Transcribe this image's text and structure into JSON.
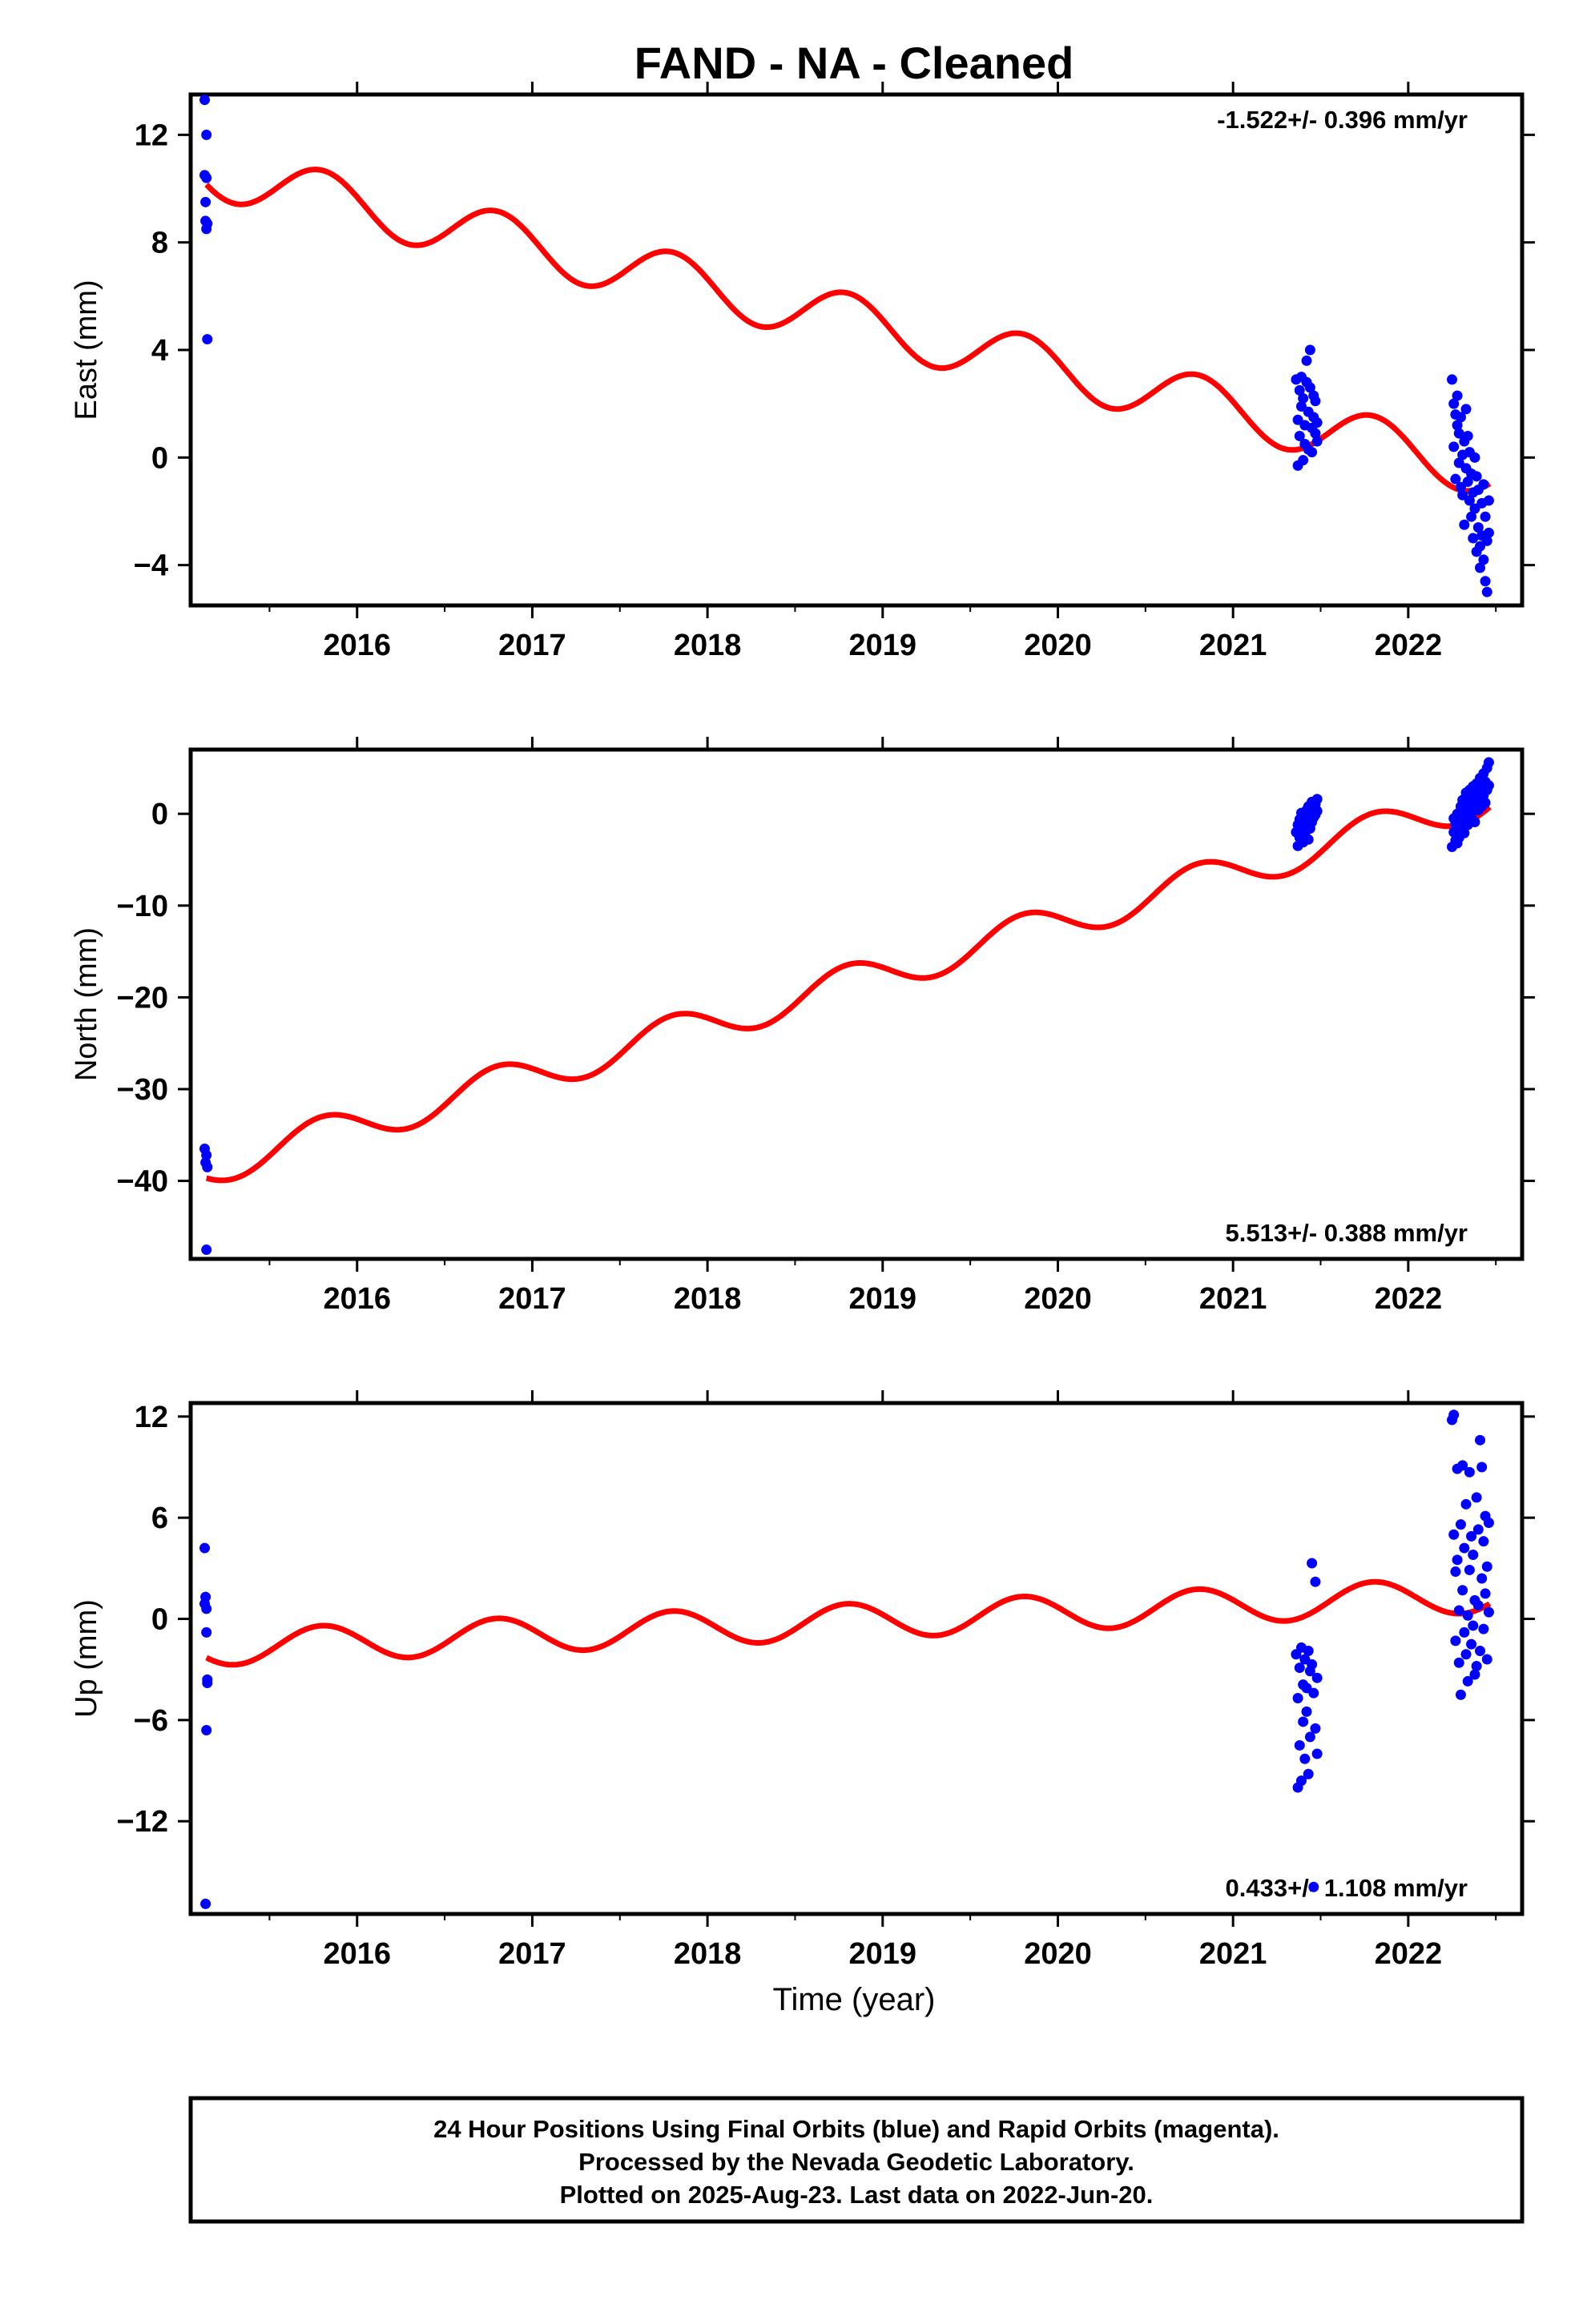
{
  "title": "FAND  - NA - Cleaned",
  "x_axis_label": "Time (year)",
  "footer": {
    "line1": "24 Hour Positions Using Final Orbits (blue) and Rapid Orbits (magenta).",
    "line2": "Processed by the Nevada Geodetic Laboratory.",
    "line3": "Plotted on 2025-Aug-23. Last data on 2022-Jun-20."
  },
  "colors": {
    "data_points": "#0000ff",
    "model_fit": "#ff0000",
    "frame": "#000000"
  },
  "chart_data": [
    {
      "type": "scatter",
      "panel": "east",
      "ylabel": "East (mm)",
      "rate_text": "-1.522+/- 0.396 mm/yr",
      "rate_position": "top-right",
      "xlim": [
        2015.05,
        2022.65
      ],
      "ylim": [
        -5.5,
        13.5
      ],
      "xticks": [
        2016,
        2017,
        2018,
        2019,
        2020,
        2021,
        2022
      ],
      "yticks": [
        12,
        8,
        4,
        0,
        -4
      ],
      "model": {
        "intercept_2015": 10.9,
        "rate_mm_yr": -1.522,
        "annual_amp": 1.0,
        "annual_phase": 0.45
      },
      "points": {
        "x": [
          2015.13,
          2015.13,
          2015.135,
          2015.135,
          2015.14,
          2015.14,
          2015.14,
          2015.145,
          2015.145,
          2021.36,
          2021.37,
          2021.37,
          2021.38,
          2021.38,
          2021.39,
          2021.39,
          2021.4,
          2021.4,
          2021.41,
          2021.41,
          2021.42,
          2021.42,
          2021.43,
          2021.43,
          2021.44,
          2021.44,
          2021.45,
          2021.45,
          2021.46,
          2021.46,
          2021.47,
          2021.47,
          2021.48,
          2021.48,
          2022.25,
          2022.26,
          2022.26,
          2022.27,
          2022.27,
          2022.28,
          2022.28,
          2022.29,
          2022.29,
          2022.3,
          2022.3,
          2022.31,
          2022.31,
          2022.32,
          2022.32,
          2022.33,
          2022.33,
          2022.34,
          2022.34,
          2022.35,
          2022.35,
          2022.36,
          2022.36,
          2022.37,
          2022.37,
          2022.38,
          2022.38,
          2022.39,
          2022.39,
          2022.4,
          2022.4,
          2022.41,
          2022.41,
          2022.42,
          2022.42,
          2022.43,
          2022.43,
          2022.44,
          2022.44,
          2022.45,
          2022.45,
          2022.46,
          2022.46
        ],
        "y": [
          13.3,
          10.5,
          9.5,
          8.8,
          12.0,
          10.4,
          8.5,
          4.4,
          8.7,
          2.9,
          1.4,
          -0.3,
          2.5,
          0.8,
          3.0,
          1.9,
          -0.1,
          2.2,
          1.2,
          0.5,
          3.6,
          2.8,
          1.7,
          0.3,
          4.0,
          2.6,
          1.1,
          0.2,
          2.3,
          1.5,
          0.9,
          2.1,
          1.3,
          0.6,
          2.9,
          2.0,
          0.4,
          1.6,
          -0.8,
          2.3,
          1.2,
          -0.2,
          0.9,
          -1.1,
          1.5,
          0.1,
          -1.4,
          0.6,
          -2.5,
          -0.4,
          1.8,
          -0.9,
          0.8,
          -1.6,
          0.2,
          -0.6,
          -2.2,
          -1.3,
          -3.0,
          0.0,
          -1.9,
          -3.5,
          -0.7,
          -2.6,
          -1.2,
          -3.3,
          -4.1,
          -1.7,
          -2.9,
          -3.8,
          -1.0,
          -4.6,
          -2.2,
          -3.1,
          -5.0,
          -1.6,
          -2.8
        ]
      }
    },
    {
      "type": "scatter",
      "panel": "north",
      "ylabel": "North (mm)",
      "rate_text": "5.513+/- 0.388 mm/yr",
      "rate_position": "bottom-right",
      "xlim": [
        2015.05,
        2022.65
      ],
      "ylim": [
        -48.5,
        7
      ],
      "xticks": [
        2016,
        2017,
        2018,
        2019,
        2020,
        2021,
        2022
      ],
      "yticks": [
        0,
        -10,
        -20,
        -30,
        -40
      ],
      "model": {
        "intercept_2015": -39.4,
        "rate_mm_yr": 5.513,
        "annual_amp": 2.0,
        "annual_phase": 0.45
      },
      "points": {
        "x": [
          2015.13,
          2015.135,
          2015.14,
          2015.145,
          2015.14,
          2021.36,
          2021.37,
          2021.37,
          2021.38,
          2021.38,
          2021.39,
          2021.39,
          2021.4,
          2021.4,
          2021.41,
          2021.41,
          2021.42,
          2021.42,
          2021.43,
          2021.43,
          2021.44,
          2021.44,
          2021.45,
          2021.45,
          2021.46,
          2021.46,
          2021.47,
          2021.47,
          2021.48,
          2021.48,
          2022.25,
          2022.26,
          2022.26,
          2022.27,
          2022.27,
          2022.28,
          2022.28,
          2022.29,
          2022.29,
          2022.3,
          2022.3,
          2022.31,
          2022.31,
          2022.32,
          2022.32,
          2022.33,
          2022.33,
          2022.34,
          2022.34,
          2022.35,
          2022.35,
          2022.36,
          2022.36,
          2022.37,
          2022.37,
          2022.38,
          2022.38,
          2022.39,
          2022.39,
          2022.4,
          2022.4,
          2022.41,
          2022.41,
          2022.42,
          2022.42,
          2022.43,
          2022.43,
          2022.44,
          2022.44,
          2022.45,
          2022.45,
          2022.46,
          2022.46
        ],
        "y": [
          -36.5,
          -38.0,
          -37.2,
          -38.5,
          -47.5,
          -2.0,
          -1.2,
          -3.5,
          -0.6,
          -2.6,
          -1.8,
          0.1,
          -3.1,
          -1.4,
          -0.2,
          -2.3,
          0.4,
          -1.0,
          -2.8,
          0.8,
          -1.6,
          0.2,
          -0.9,
          1.3,
          -0.4,
          0.6,
          1.0,
          -0.1,
          1.6,
          0.3,
          -3.6,
          -2.0,
          -0.5,
          -2.9,
          -1.1,
          -3.2,
          0.0,
          -1.8,
          -2.6,
          0.8,
          -0.9,
          -1.5,
          1.5,
          -2.1,
          0.3,
          -0.6,
          2.3,
          -1.2,
          1.0,
          0.0,
          2.6,
          -0.4,
          1.7,
          0.6,
          3.0,
          -0.9,
          1.9,
          1.1,
          3.3,
          0.4,
          2.5,
          1.5,
          3.9,
          0.8,
          2.9,
          2.0,
          4.4,
          1.2,
          3.5,
          2.6,
          5.0,
          3.1,
          5.6
        ]
      }
    },
    {
      "type": "scatter",
      "panel": "up",
      "ylabel": "Up (mm)",
      "rate_text": "0.433+/- 1.108 mm/yr",
      "rate_position": "bottom-right",
      "xlim": [
        2015.05,
        2022.65
      ],
      "ylim": [
        -17.5,
        12.8
      ],
      "xticks": [
        2016,
        2017,
        2018,
        2019,
        2020,
        2021,
        2022
      ],
      "yticks": [
        12,
        6,
        0,
        -6,
        -12
      ],
      "model": {
        "intercept_2015": -1.8,
        "rate_mm_yr": 0.433,
        "annual_amp": 1.05,
        "annual_phase": 0.45
      },
      "points": {
        "x": [
          2015.13,
          2015.135,
          2015.14,
          2015.14,
          2015.145,
          2015.145,
          2015.14,
          2015.135,
          2015.13,
          2021.36,
          2021.37,
          2021.37,
          2021.38,
          2021.38,
          2021.39,
          2021.39,
          2021.4,
          2021.4,
          2021.41,
          2021.41,
          2021.42,
          2021.42,
          2021.43,
          2021.43,
          2021.44,
          2021.44,
          2021.45,
          2021.45,
          2021.46,
          2021.46,
          2021.47,
          2021.47,
          2021.48,
          2021.48,
          2022.25,
          2022.26,
          2022.26,
          2022.27,
          2022.27,
          2022.28,
          2022.28,
          2022.29,
          2022.29,
          2022.3,
          2022.3,
          2022.31,
          2022.31,
          2022.32,
          2022.32,
          2022.33,
          2022.33,
          2022.34,
          2022.34,
          2022.35,
          2022.35,
          2022.36,
          2022.36,
          2022.37,
          2022.37,
          2022.38,
          2022.38,
          2022.39,
          2022.39,
          2022.4,
          2022.4,
          2022.41,
          2022.41,
          2022.42,
          2022.42,
          2022.43,
          2022.43,
          2022.44,
          2022.44,
          2022.45,
          2022.45,
          2022.46,
          2022.46
        ],
        "y": [
          4.2,
          1.3,
          0.6,
          -0.8,
          -3.6,
          -3.8,
          -6.6,
          -16.9,
          0.9,
          -2.1,
          -10.0,
          -4.7,
          -2.9,
          -7.5,
          -1.7,
          -9.6,
          -3.9,
          -6.1,
          -2.4,
          -8.3,
          -4.1,
          -5.5,
          -1.9,
          -9.2,
          -3.1,
          -7.0,
          3.3,
          -2.7,
          -15.9,
          -4.4,
          -6.5,
          2.2,
          -3.5,
          -8.0,
          11.8,
          12.1,
          5.0,
          2.8,
          -1.3,
          8.9,
          3.5,
          0.5,
          -2.6,
          5.6,
          -4.5,
          9.1,
          1.7,
          -0.8,
          4.2,
          -2.1,
          6.8,
          0.2,
          -3.7,
          2.9,
          8.7,
          -1.5,
          4.9,
          -0.4,
          3.8,
          -3.3,
          1.1,
          7.2,
          -2.8,
          0.8,
          5.3,
          10.6,
          -1.9,
          2.4,
          9.0,
          -0.6,
          4.6,
          1.5,
          6.1,
          -2.4,
          3.1,
          0.4,
          5.7
        ]
      }
    }
  ]
}
